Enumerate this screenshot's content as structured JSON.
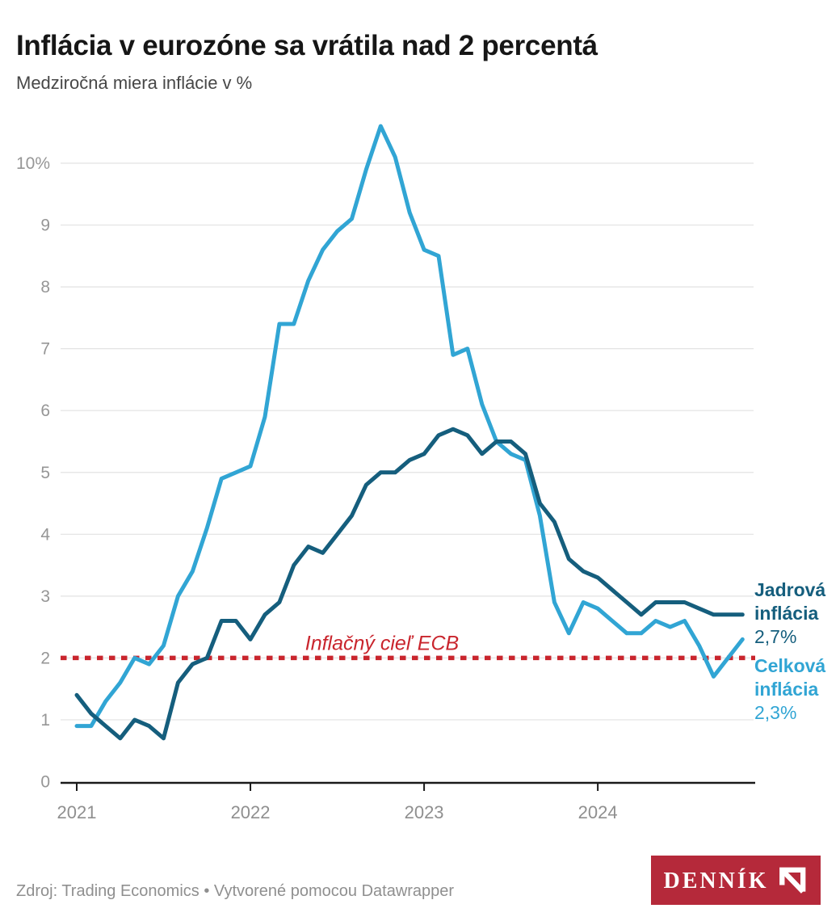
{
  "header": {
    "title": "Inflácia v eurozóne sa vrátila nad 2 percentá",
    "subtitle": "Medziročná miera inflácie v %"
  },
  "footer": {
    "source": "Zdroj: Trading Economics • Vytvorené pomocou Datawrapper",
    "logo_text": "DENNÍK"
  },
  "colors": {
    "core_line": "#155E7D",
    "headline_line": "#31A5D4",
    "target_red": "#C9252D",
    "gridline": "#E2E2E2",
    "axis": "#1A1A1A",
    "axis_label": "#969696",
    "logo_background": "#B5293A"
  },
  "chart_data": {
    "type": "line",
    "title": "Inflácia v eurozóne sa vrátila nad 2 percentá",
    "subtitle": "Medziročná miera inflácie v %",
    "frequency": "monthly",
    "x_start": "2021-01",
    "x_end": "2024-11",
    "x_months": [
      "2021-01",
      "2021-02",
      "2021-03",
      "2021-04",
      "2021-05",
      "2021-06",
      "2021-07",
      "2021-08",
      "2021-09",
      "2021-10",
      "2021-11",
      "2021-12",
      "2022-01",
      "2022-02",
      "2022-03",
      "2022-04",
      "2022-05",
      "2022-06",
      "2022-07",
      "2022-08",
      "2022-09",
      "2022-10",
      "2022-11",
      "2022-12",
      "2023-01",
      "2023-02",
      "2023-03",
      "2023-04",
      "2023-05",
      "2023-06",
      "2023-07",
      "2023-08",
      "2023-09",
      "2023-10",
      "2023-11",
      "2023-12",
      "2024-01",
      "2024-02",
      "2024-03",
      "2024-04",
      "2024-05",
      "2024-06",
      "2024-07",
      "2024-08",
      "2024-09",
      "2024-10",
      "2024-11"
    ],
    "series": [
      {
        "id": "core",
        "name": "Jadrová inflácia",
        "last_value_label": "2,7%",
        "color": "#155E7D",
        "values": [
          1.4,
          1.1,
          0.9,
          0.7,
          1.0,
          0.9,
          0.7,
          1.6,
          1.9,
          2.0,
          2.6,
          2.6,
          2.3,
          2.7,
          2.9,
          3.5,
          3.8,
          3.7,
          4.0,
          4.3,
          4.8,
          5.0,
          5.0,
          5.2,
          5.3,
          5.6,
          5.7,
          5.6,
          5.3,
          5.5,
          5.5,
          5.3,
          4.5,
          4.2,
          3.6,
          3.4,
          3.3,
          3.1,
          2.9,
          2.7,
          2.9,
          2.9,
          2.9,
          2.8,
          2.7,
          2.7,
          2.7
        ]
      },
      {
        "id": "headline",
        "name": "Celková inflácia",
        "last_value_label": "2,3%",
        "color": "#31A5D4",
        "values": [
          0.9,
          0.9,
          1.3,
          1.6,
          2.0,
          1.9,
          2.2,
          3.0,
          3.4,
          4.1,
          4.9,
          5.0,
          5.1,
          5.9,
          7.4,
          7.4,
          8.1,
          8.6,
          8.9,
          9.1,
          9.9,
          10.6,
          10.1,
          9.2,
          8.6,
          8.5,
          6.9,
          7.0,
          6.1,
          5.5,
          5.3,
          5.2,
          4.3,
          2.9,
          2.4,
          2.9,
          2.8,
          2.6,
          2.4,
          2.4,
          2.6,
          2.5,
          2.6,
          2.2,
          1.7,
          2.0,
          2.3
        ]
      }
    ],
    "target_line": {
      "value": 2,
      "label": "Inflačný cieľ ECB",
      "color": "#C9252D"
    },
    "yticks": [
      {
        "v": 0,
        "label": "0"
      },
      {
        "v": 1,
        "label": "1"
      },
      {
        "v": 2,
        "label": "2"
      },
      {
        "v": 3,
        "label": "3"
      },
      {
        "v": 4,
        "label": "4"
      },
      {
        "v": 5,
        "label": "5"
      },
      {
        "v": 6,
        "label": "6"
      },
      {
        "v": 7,
        "label": "7"
      },
      {
        "v": 8,
        "label": "8"
      },
      {
        "v": 9,
        "label": "9"
      },
      {
        "v": 10,
        "label": "10%"
      }
    ],
    "xticks": [
      {
        "month_index": 0,
        "label": "2021"
      },
      {
        "month_index": 12,
        "label": "2022"
      },
      {
        "month_index": 24,
        "label": "2023"
      },
      {
        "month_index": 36,
        "label": "2024"
      }
    ],
    "ylim": [
      0,
      10.7
    ],
    "grid": "horizontal",
    "legend_position": "right-end-labels"
  }
}
